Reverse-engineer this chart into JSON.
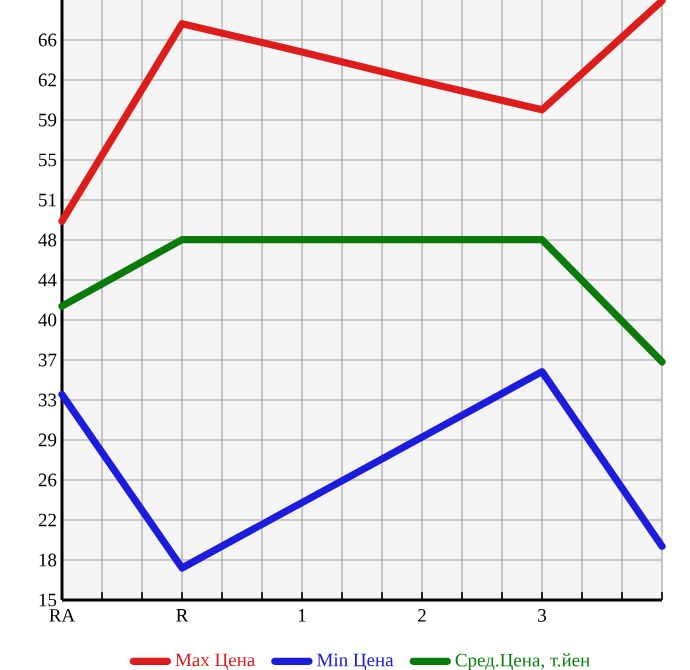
{
  "chart_data": {
    "type": "line",
    "categories": [
      "RA",
      "R",
      "1",
      "2",
      "3",
      null
    ],
    "series": [
      {
        "name": "Max Цена",
        "color": "#dd1c1c",
        "values": [
          49.4,
          67.5,
          64.9,
          62.2,
          59.6,
          69.6
        ]
      },
      {
        "name": "Min Цена",
        "color": "#1c1cdd",
        "values": [
          33.5,
          17.6,
          23.6,
          29.6,
          35.6,
          19.6
        ]
      },
      {
        "name": "Сред.Цена, т.йен",
        "color": "#0a7a0a",
        "values": [
          41.6,
          47.7,
          47.7,
          47.7,
          47.7,
          36.5
        ]
      }
    ],
    "ylim": [
      14.667,
      69.667
    ],
    "yticks": [
      {
        "value": 14.667,
        "label": "15"
      },
      {
        "value": 18.333,
        "label": "18"
      },
      22,
      {
        "value": 25.667,
        "label": "26"
      },
      {
        "value": 29.333,
        "label": "29"
      },
      33,
      {
        "value": 36.667,
        "label": "37"
      },
      {
        "value": 40.333,
        "label": "40"
      },
      44,
      {
        "value": 47.667,
        "label": "48"
      },
      {
        "value": 51.333,
        "label": "51"
      },
      55,
      {
        "value": 58.667,
        "label": "59"
      },
      {
        "value": 62.333,
        "label": "62"
      },
      66
    ],
    "grid": true,
    "legend": "bottom",
    "marker": "none",
    "line_style": "solid"
  }
}
